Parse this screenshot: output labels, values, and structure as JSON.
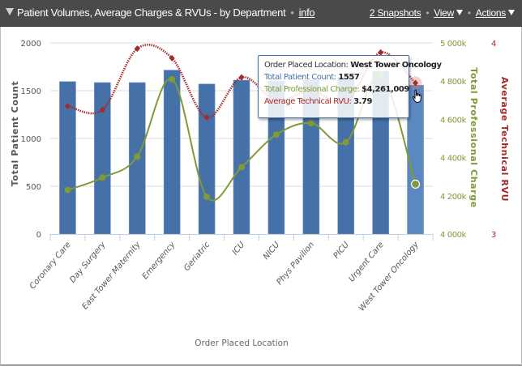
{
  "header": {
    "title": "Patient Volumes, Average Charges & RVUs - by Department",
    "info_link": "info",
    "snapshots_link": "2 Snapshots",
    "view_menu": "View",
    "actions_menu": "Actions"
  },
  "tooltip": {
    "location_label": "Order Placed Location:",
    "location_value": "West Tower Oncology",
    "count_label": "Total Patient Count:",
    "count_value": "1557",
    "charge_label": "Total Professional Charge:",
    "charge_value": "$4,261,009",
    "rvu_label": "Average Technical RVU:",
    "rvu_value": "3.79"
  },
  "colors": {
    "bar": "#4571a8",
    "bar_hover": "#5c88c2",
    "charge_line": "#7f9a36",
    "rvu_line": "#a52a2a",
    "header_bg": "#4a4a4a"
  },
  "chart_data": {
    "type": "bar",
    "title": "Patient Volumes, Average Charges & RVUs - by Department",
    "xlabel": "Order Placed Location",
    "categories": [
      "Coronary Care",
      "Day Surgery",
      "East Tower Maternity",
      "Emergency",
      "Geriatric",
      "ICU",
      "NICU",
      "Phys Pavilion",
      "PICU",
      "Urgent Care",
      "West Tower Oncology"
    ],
    "series": [
      {
        "name": "Total Patient Count",
        "type": "bar",
        "axis": "left",
        "values": [
          1595,
          1585,
          1585,
          1715,
          1570,
          1610,
          1600,
          1610,
          1640,
          1700,
          1557
        ]
      },
      {
        "name": "Total Professional Charge",
        "type": "line",
        "axis": "right1",
        "values": [
          4230000,
          4295000,
          4405000,
          4810000,
          4195000,
          4350000,
          4520000,
          4580000,
          4480000,
          4830000,
          4261009
        ]
      },
      {
        "name": "Average Technical RVU",
        "type": "line",
        "axis": "right2",
        "dashed": true,
        "values": [
          3.67,
          3.65,
          3.97,
          3.92,
          3.61,
          3.82,
          3.7,
          3.75,
          3.69,
          3.95,
          3.79
        ]
      }
    ],
    "axes": {
      "left": {
        "label": "Total Patient Count",
        "min": 0,
        "max": 2000,
        "ticks": [
          "0",
          "500",
          "1000",
          "1500",
          "2000"
        ],
        "grid": true
      },
      "right1": {
        "label": "Total Professional Charge",
        "min": 4000000,
        "max": 5000000,
        "ticks": [
          "4 000k",
          "4 200k",
          "4 400k",
          "4 600k",
          "4 800k",
          "5 000k"
        ]
      },
      "right2": {
        "label": "Average Technical RVU",
        "min": 3,
        "max": 4,
        "ticks": [
          "3",
          "4"
        ]
      }
    },
    "highlighted_category": "West Tower Oncology",
    "legend": "none"
  }
}
